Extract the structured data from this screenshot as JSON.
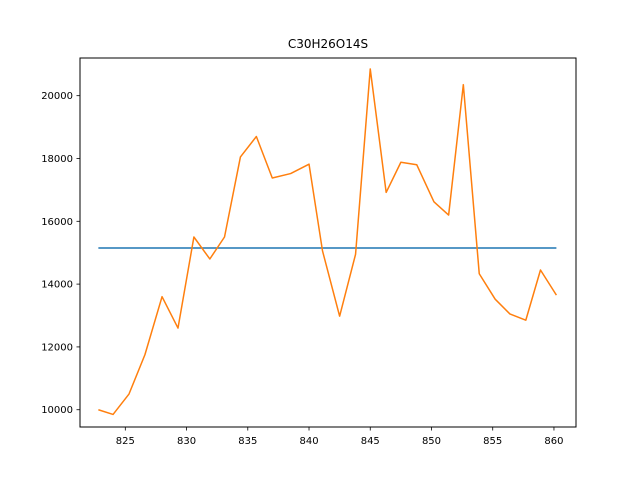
{
  "chart_data": {
    "type": "line",
    "title": "C30H26O14S",
    "xlabel": "",
    "ylabel": "",
    "xlim": [
      821.3,
      861.8
    ],
    "ylim": [
      9450,
      21200
    ],
    "grid": false,
    "xticks": [
      825,
      830,
      835,
      840,
      845,
      850,
      855,
      860
    ],
    "yticks": [
      10000,
      12000,
      14000,
      16000,
      18000,
      20000
    ],
    "series": [
      {
        "color": "#1f77b4",
        "x": [
          822.8,
          860.2
        ],
        "y": [
          15150,
          15150
        ]
      },
      {
        "color": "#ff7f0e",
        "x": [
          822.8,
          824.0,
          825.3,
          826.6,
          828.0,
          829.3,
          830.6,
          831.9,
          833.1,
          834.4,
          835.7,
          837.0,
          838.5,
          840.0,
          841.1,
          842.5,
          843.8,
          845.0,
          846.3,
          847.5,
          848.8,
          850.2,
          851.4,
          852.6,
          853.9,
          855.2,
          856.4,
          857.7,
          858.9,
          860.2
        ],
        "y": [
          10000,
          9850,
          10500,
          11750,
          13600,
          12600,
          15500,
          14800,
          15500,
          18050,
          18700,
          17380,
          17520,
          17820,
          15060,
          12980,
          14950,
          20850,
          16920,
          17880,
          17800,
          16620,
          16200,
          20350,
          14330,
          13520,
          13050,
          12850,
          14450,
          13650
        ]
      }
    ]
  }
}
